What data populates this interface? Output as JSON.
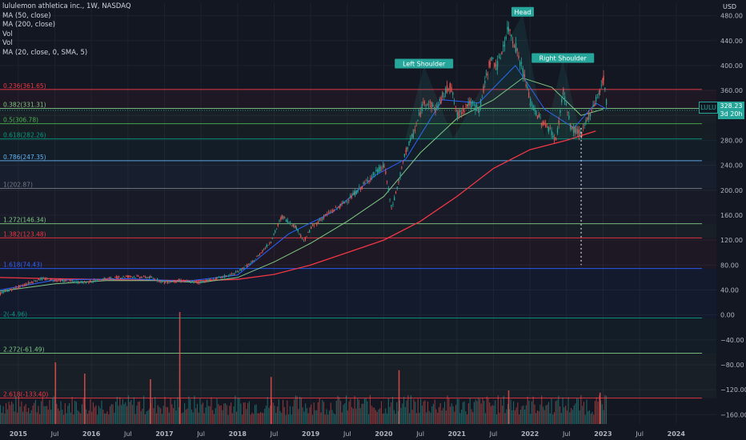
{
  "chart_data": {
    "type": "line",
    "title": "lululemon athletica inc., 1W, NASDAQ",
    "indicators": [
      "MA (50, close)",
      "MA (200, close)",
      "Vol",
      "Vol",
      "MA (20, close, 0, SMA, 5)"
    ],
    "currency": "USD",
    "ticker": "LULU",
    "last_price": "328.23",
    "countdown": "3d 20h",
    "y_ticks": [
      480,
      440,
      400,
      360,
      320,
      280,
      240,
      200,
      160,
      120,
      80,
      40,
      0,
      -40,
      -80,
      -120,
      -160
    ],
    "y_tick_labels": [
      "480.00",
      "440.00",
      "400.00",
      "360.00",
      "320.00",
      "280.00",
      "240.00",
      "200.00",
      "160.00",
      "120.00",
      "80.00",
      "40.00",
      "0.00",
      "−40.00",
      "−80.00",
      "−120.00",
      "−160.00"
    ],
    "ylim": [
      -175,
      500
    ],
    "x_ticks": [
      "2015",
      "Jul",
      "2016",
      "Jul",
      "2017",
      "Jul",
      "2018",
      "Jul",
      "2019",
      "Jul",
      "2020",
      "Jul",
      "2021",
      "Jul",
      "2022",
      "Jul",
      "2023",
      "Jul",
      "2024"
    ],
    "xlim": [
      2014.75,
      2024.55
    ],
    "fib_levels": [
      {
        "label": "0.236(361.65)",
        "value": 361.65,
        "color": "#f23645"
      },
      {
        "label": "0.382(331.31)",
        "value": 331.31,
        "color": "#81c784"
      },
      {
        "label": "0.5(306.78)",
        "value": 306.78,
        "color": "#4caf50"
      },
      {
        "label": "0.618(282.26)",
        "value": 282.26,
        "color": "#089981"
      },
      {
        "label": "0.786(247.35)",
        "value": 247.35,
        "color": "#64b5f6"
      },
      {
        "label": "1(202.87)",
        "value": 202.87,
        "color": "#787b86"
      },
      {
        "label": "1.272(146.34)",
        "value": 146.34,
        "color": "#81c784"
      },
      {
        "label": "1.382(123.48)",
        "value": 123.48,
        "color": "#f23645"
      },
      {
        "label": "1.618(74.43)",
        "value": 74.43,
        "color": "#2962ff"
      },
      {
        "label": "2(-4.96)",
        "value": -4.96,
        "color": "#089981"
      },
      {
        "label": "2.272(-61.49)",
        "value": -61.49,
        "color": "#81c784"
      },
      {
        "label": "2.618(-133.40)",
        "value": -133.4,
        "color": "#f23645"
      }
    ],
    "pattern_labels": [
      {
        "text": "Left Shoulder",
        "x": 2020.55,
        "y": 398
      },
      {
        "text": "Head",
        "x": 2021.9,
        "y": 481
      },
      {
        "text": "Right Shoulder",
        "x": 2022.45,
        "y": 407
      }
    ],
    "price_series": {
      "name": "Price",
      "x": [
        2014.75,
        2015.0,
        2015.3,
        2015.6,
        2015.9,
        2016.2,
        2016.5,
        2016.8,
        2017.0,
        2017.2,
        2017.45,
        2017.7,
        2017.95,
        2018.2,
        2018.45,
        2018.6,
        2018.8,
        2018.9,
        2019.0,
        2019.2,
        2019.4,
        2019.6,
        2019.85,
        2020.0,
        2020.1,
        2020.2,
        2020.3,
        2020.4,
        2020.55,
        2020.7,
        2020.8,
        2020.9,
        2021.0,
        2021.15,
        2021.3,
        2021.45,
        2021.55,
        2021.7,
        2021.8,
        2021.9,
        2022.0,
        2022.15,
        2022.25,
        2022.35,
        2022.45,
        2022.55,
        2022.7,
        2022.8,
        2022.95,
        2023.0,
        2023.05
      ],
      "y": [
        35,
        45,
        58,
        55,
        52,
        58,
        62,
        60,
        52,
        55,
        52,
        58,
        66,
        85,
        118,
        158,
        140,
        118,
        140,
        160,
        175,
        195,
        225,
        240,
        170,
        215,
        265,
        290,
        345,
        330,
        350,
        370,
        320,
        340,
        330,
        410,
        400,
        460,
        430,
        390,
        340,
        310,
        300,
        280,
        360,
        300,
        290,
        320,
        360,
        380,
        328
      ],
      "color": "#d1d4dc"
    },
    "ma50": {
      "name": "MA (50, close)",
      "x": [
        2014.75,
        2015.5,
        2016.2,
        2016.9,
        2017.5,
        2018.0,
        2018.5,
        2019.0,
        2019.5,
        2020.0,
        2020.5,
        2021.0,
        2021.5,
        2021.9,
        2022.3,
        2022.7,
        2023.0
      ],
      "y": [
        38,
        50,
        55,
        55,
        52,
        60,
        85,
        115,
        150,
        190,
        260,
        315,
        345,
        380,
        365,
        320,
        330
      ],
      "color": "#81c784"
    },
    "ma200": {
      "name": "MA (200, close)",
      "x": [
        2014.75,
        2015.5,
        2016.5,
        2017.5,
        2018.0,
        2018.5,
        2019.0,
        2019.5,
        2020.0,
        2020.5,
        2021.0,
        2021.5,
        2022.0,
        2022.5,
        2022.9
      ],
      "y": [
        60,
        58,
        56,
        55,
        57,
        65,
        80,
        100,
        120,
        150,
        190,
        235,
        265,
        280,
        295
      ],
      "color": "#f23645"
    },
    "ma20": {
      "name": "MA (20, close, 0, SMA, 5)",
      "x": [
        2014.75,
        2015.5,
        2016.5,
        2017.3,
        2018.0,
        2018.7,
        2019.3,
        2019.9,
        2020.3,
        2020.8,
        2021.3,
        2021.8,
        2022.2,
        2022.6,
        2022.9,
        2023.05
      ],
      "y": [
        40,
        56,
        58,
        54,
        64,
        130,
        165,
        225,
        250,
        345,
        340,
        400,
        330,
        300,
        340,
        330
      ],
      "color": "#2962ff"
    },
    "volume_spikes": [
      {
        "x": 2015.5,
        "v": 0.55
      },
      {
        "x": 2015.9,
        "v": 0.45
      },
      {
        "x": 2017.2,
        "v": 1.0
      },
      {
        "x": 2016.8,
        "v": 0.4
      },
      {
        "x": 2018.45,
        "v": 0.42
      },
      {
        "x": 2020.2,
        "v": 0.48
      },
      {
        "x": 2021.7,
        "v": 0.3
      },
      {
        "x": 2022.95,
        "v": 0.28
      }
    ]
  }
}
